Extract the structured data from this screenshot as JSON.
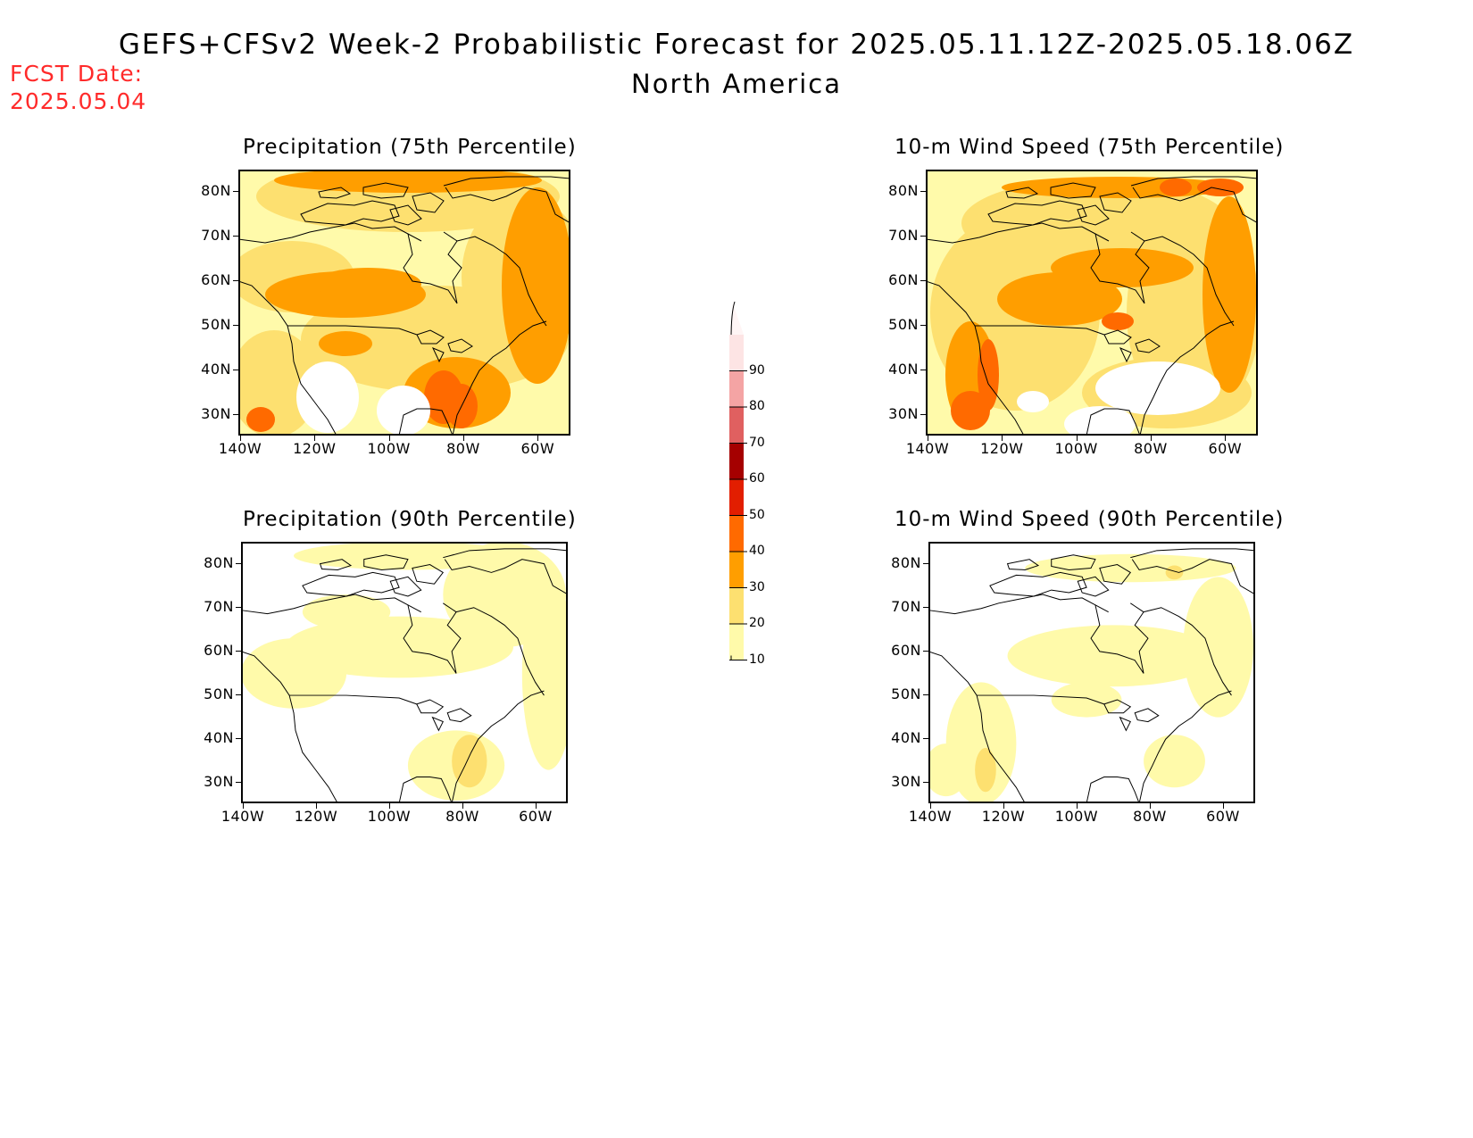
{
  "header": {
    "title": "GEFS+CFSv2 Week-2 Probabilistic Forecast for 2025.05.11.12Z-2025.05.18.06Z",
    "subtitle": "North America",
    "fcst_label": "FCST Date:",
    "fcst_date": "2025.05.04"
  },
  "axes": {
    "lat_labels": [
      "80N",
      "70N",
      "60N",
      "50N",
      "40N",
      "30N"
    ],
    "lon_labels": [
      "140W",
      "120W",
      "100W",
      "80W",
      "60W"
    ]
  },
  "panels": [
    {
      "id": "precip75",
      "title": "Precipitation (75th Percentile)",
      "base_class": 1
    },
    {
      "id": "wind75",
      "title": "10-m Wind Speed (75th Percentile)",
      "base_class": 1
    },
    {
      "id": "precip90",
      "title": "Precipitation (90th Percentile)",
      "base_class": 0
    },
    {
      "id": "wind90",
      "title": "10-m Wind Speed (90th Percentile)",
      "base_class": 0
    }
  ],
  "colorbar": {
    "labels": [
      "90",
      "80",
      "70",
      "60",
      "50",
      "40",
      "30",
      "20",
      "10"
    ],
    "colors": [
      "#fde4e4",
      "#f4a4a4",
      "#e06060",
      "#a50000",
      "#e21e00",
      "#ff6a00",
      "#ff9e00",
      "#fde070",
      "#fffaaa"
    ]
  }
}
